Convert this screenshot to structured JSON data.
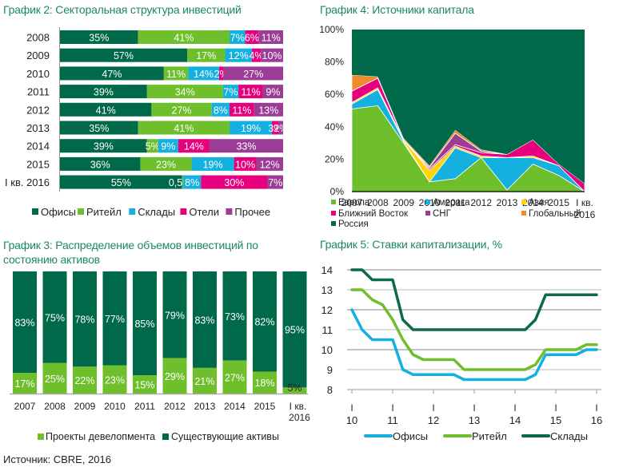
{
  "source": "Источник: CBRE, 2016",
  "chart_data": [
    {
      "id": "chart2",
      "type": "bar",
      "orientation": "horizontal-stacked-100",
      "title": "График 2: Секторальная структура инвестиций",
      "categories": [
        "2008",
        "2009",
        "2010",
        "2011",
        "2012",
        "2013",
        "2014",
        "2015",
        "I кв. 2016"
      ],
      "series": [
        {
          "name": "Офисы",
          "color": "#00694a",
          "values": [
            35,
            57,
            47,
            39,
            41,
            35,
            39,
            36,
            55
          ],
          "labels": [
            "35%",
            "57%",
            "47%",
            "39%",
            "41%",
            "35%",
            "39%",
            "36%",
            "55%"
          ]
        },
        {
          "name": "Ритейл",
          "color": "#6fbe2c",
          "values": [
            41,
            17,
            11,
            34,
            27,
            41,
            5,
            23,
            0.5
          ],
          "labels": [
            "41%",
            "17%",
            "11%",
            "34%",
            "27%",
            "41%",
            "5%",
            "23%",
            "0,5%"
          ]
        },
        {
          "name": "Склады",
          "color": "#14b0e0",
          "values": [
            7,
            12,
            14,
            7,
            8,
            19,
            9,
            19,
            8
          ],
          "labels": [
            "7%",
            "12%",
            "14%",
            "7%",
            "8%",
            "19%",
            "9%",
            "19%",
            "8%"
          ]
        },
        {
          "name": "Отели",
          "color": "#e6007e",
          "values": [
            6,
            4,
            2,
            11,
            11,
            3,
            14,
            10,
            30
          ],
          "labels": [
            "6%",
            "4%",
            "2%",
            "11%",
            "11%",
            "3%",
            "14%",
            "10%",
            "30%"
          ]
        },
        {
          "name": "Прочее",
          "color": "#9b3d96",
          "values": [
            11,
            10,
            27,
            9,
            13,
            2,
            33,
            12,
            7
          ],
          "labels": [
            "11%",
            "10%",
            "27%",
            "9%",
            "13%",
            "2%",
            "33%",
            "12%",
            "7%"
          ]
        }
      ],
      "legend": "bottom"
    },
    {
      "id": "chart4",
      "type": "area",
      "stacked": true,
      "title": "График 4: Источники капитала",
      "categories": [
        "2007",
        "2008",
        "2009",
        "2010",
        "2011",
        "2012",
        "2013",
        "2014",
        "2015",
        "I кв. 2016"
      ],
      "yticks": [
        "0%",
        "20%",
        "40%",
        "60%",
        "80%",
        "100%"
      ],
      "ylim": [
        0,
        100
      ],
      "series": [
        {
          "name": "Европа",
          "color": "#6fbe2c",
          "values": [
            51,
            53,
            30,
            6,
            8,
            21,
            1,
            17,
            10,
            0
          ]
        },
        {
          "name": "Америка",
          "color": "#14b0e0",
          "values": [
            3,
            10,
            1,
            0,
            19,
            0,
            20,
            4,
            6,
            0
          ]
        },
        {
          "name": "Азия",
          "color": "#ffd600",
          "values": [
            1,
            1,
            1,
            7,
            1,
            1,
            0,
            1,
            0,
            0
          ]
        },
        {
          "name": "Ближний Восток",
          "color": "#e6007e",
          "values": [
            7,
            6,
            0,
            1,
            1,
            2,
            2,
            10,
            1,
            5
          ]
        },
        {
          "name": "СНГ",
          "color": "#9b3d96",
          "values": [
            0,
            0,
            0,
            1,
            7,
            1,
            0,
            0,
            0,
            0
          ]
        },
        {
          "name": "Глобальный",
          "color": "#f08a2c",
          "values": [
            10,
            1,
            1,
            1,
            2,
            1,
            0,
            0,
            0,
            0
          ]
        },
        {
          "name": "Россия",
          "color": "#00694a",
          "values": [
            28,
            29,
            67,
            84,
            62,
            74,
            77,
            68,
            83,
            95
          ]
        }
      ],
      "legend": "bottom"
    },
    {
      "id": "chart3",
      "type": "bar",
      "orientation": "vertical-stacked-100",
      "title": "График 3: Распределение объемов инвестиций по состоянию активов",
      "title_lines": [
        "График 3: Распределение объемов инвестиций по",
        "состоянию активов"
      ],
      "categories": [
        "2007",
        "2008",
        "2009",
        "2010",
        "2011",
        "2012",
        "2013",
        "2014",
        "2015",
        "I кв. 2016"
      ],
      "series": [
        {
          "name": "Проекты девелопмента",
          "color": "#6fbe2c",
          "values": [
            17,
            25,
            22,
            23,
            15,
            29,
            21,
            27,
            18,
            5
          ]
        },
        {
          "name": "Существующие активы",
          "color": "#00694a",
          "values": [
            83,
            75,
            78,
            77,
            85,
            79,
            83,
            73,
            82,
            95
          ]
        }
      ],
      "legend": "bottom"
    },
    {
      "id": "chart5",
      "type": "line",
      "title": "График 5: Ставки капитализации, %",
      "x_tick_labels": [
        "I\n10",
        "I\n11",
        "I\n12",
        "I\n13",
        "I\n14",
        "I\n15",
        "I\n16"
      ],
      "x_tick_years": [
        "10",
        "11",
        "12",
        "13",
        "14",
        "15",
        "16"
      ],
      "x_note": "quarterly Q1 2010 – Q1 2016",
      "ylim": [
        8,
        14
      ],
      "yticks": [
        "8",
        "9",
        "10",
        "11",
        "12",
        "13",
        "14"
      ],
      "series": [
        {
          "name": "Офисы",
          "color": "#14b0e0",
          "values": [
            12,
            11,
            10.5,
            10.5,
            10.5,
            9,
            8.75,
            8.75,
            8.75,
            8.75,
            8.75,
            8.5,
            8.5,
            8.5,
            8.5,
            8.5,
            8.5,
            8.5,
            8.75,
            9.75,
            9.75,
            9.75,
            9.75,
            10,
            10
          ]
        },
        {
          "name": "Ритейл",
          "color": "#6fbe2c",
          "values": [
            13,
            13,
            12.5,
            12.25,
            11.5,
            10.5,
            9.75,
            9.5,
            9.5,
            9.5,
            9.5,
            9,
            9,
            9,
            9,
            9,
            9,
            9,
            9.25,
            10,
            10,
            10,
            10,
            10.25,
            10.25
          ]
        },
        {
          "name": "Склады",
          "color": "#0b6b45",
          "values": [
            14,
            14,
            13.5,
            13.5,
            13.5,
            11.5,
            11,
            11,
            11,
            11,
            11,
            11,
            11,
            11,
            11,
            11,
            11,
            11,
            11.5,
            12.75,
            12.75,
            12.75,
            12.75,
            12.75,
            12.75
          ]
        }
      ],
      "legend": "bottom"
    }
  ]
}
